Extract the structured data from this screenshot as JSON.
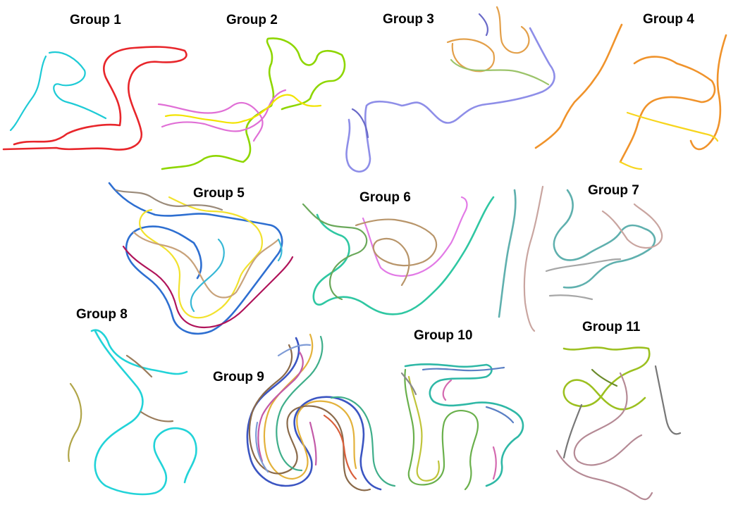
{
  "groups": [
    {
      "label": "Group 1",
      "colors": [
        "#e8262b",
        "#1ecbd6"
      ]
    },
    {
      "label": "Group 2",
      "colors": [
        "#8ed600",
        "#e06fd6",
        "#f2e300",
        "#c2185b"
      ]
    },
    {
      "label": "Group 3",
      "colors": [
        "#8e8ee8",
        "#e3a04a",
        "#9cc46a",
        "#6a6ac8"
      ]
    },
    {
      "label": "Group 4",
      "colors": [
        "#f0932b",
        "#f7d51d"
      ]
    },
    {
      "label": "Group 5",
      "colors": [
        "#2e6fd1",
        "#f2e22e",
        "#c8a27a",
        "#b0145a",
        "#37b8d6",
        "#9b8b7a"
      ]
    },
    {
      "label": "Group 6",
      "colors": [
        "#2fc7a2",
        "#e27ae6",
        "#b8956a",
        "#6aa85a"
      ]
    },
    {
      "label": "Group 7",
      "colors": [
        "#5fb0ae",
        "#c9a5a0",
        "#a7a7a7"
      ]
    },
    {
      "label": "Group 8",
      "colors": [
        "#22d3d8",
        "#b0a548",
        "#9a7c5c"
      ]
    },
    {
      "label": "Group 9",
      "colors": [
        "#3b55c2",
        "#e3b23c",
        "#8a6a4a",
        "#3fae8a",
        "#c35aa8",
        "#7e9bd6",
        "#d95f3b"
      ]
    },
    {
      "label": "Group 10",
      "colors": [
        "#2fb8a6",
        "#6ab04c",
        "#c0c43a",
        "#5a7fc4",
        "#d46ab0",
        "#8a8a8a"
      ]
    },
    {
      "label": "Group 11",
      "colors": [
        "#9cc020",
        "#b58a95",
        "#777777",
        "#6a8a2a"
      ]
    }
  ]
}
